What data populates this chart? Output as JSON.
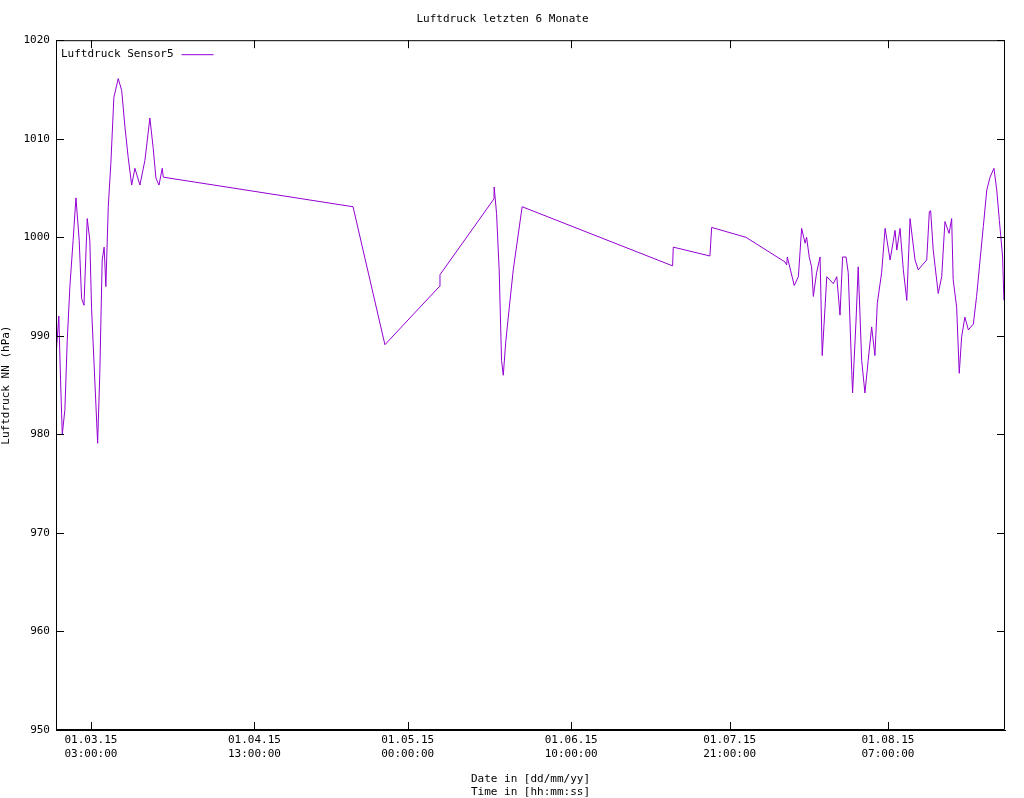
{
  "chart_data": {
    "type": "line",
    "title": "Luftdruck letzten 6 Monate",
    "xlabel": "Date in [dd/mm/yy]\nTime in [hh:mm:ss]",
    "ylabel": "Luftdruck NN (hPa)",
    "xlim": [
      "2015-02-22T10:00",
      "2015-08-23T19:00"
    ],
    "xticks": [
      {
        "value": "2015-03-01T03:00",
        "label": "01.03.15\n03:00:00"
      },
      {
        "value": "2015-04-01T13:00",
        "label": "01.04.15\n13:00:00"
      },
      {
        "value": "2015-05-01T00:00",
        "label": "01.05.15\n00:00:00"
      },
      {
        "value": "2015-06-01T10:00",
        "label": "01.06.15\n10:00:00"
      },
      {
        "value": "2015-07-01T21:00",
        "label": "01.07.15\n21:00:00"
      },
      {
        "value": "2015-08-01T07:00",
        "label": "01.08.15\n07:00:00"
      }
    ],
    "ylim": [
      950,
      1020
    ],
    "yticks": [
      950,
      960,
      970,
      980,
      990,
      1000,
      1010,
      1020
    ],
    "grid": false,
    "legend": "top left",
    "marker": "none",
    "line_style": "solid",
    "series": [
      {
        "name": "Luftdruck Sensor5",
        "color": "#9400d3",
        "x": [
          "2015-02-22T10:00",
          "2015-02-22T23:00",
          "2015-02-23T07:00",
          "2015-02-23T15:00",
          "2015-02-24T03:00",
          "2015-02-24T14:00",
          "2015-02-25T02:00",
          "2015-02-25T17:00",
          "2015-02-26T06:00",
          "2015-02-26T21:00",
          "2015-02-27T08:00",
          "2015-02-27T19:00",
          "2015-02-28T10:00",
          "2015-02-28T22:00",
          "2015-03-01T06:00",
          "2015-03-01T21:00",
          "2015-03-02T10:00",
          "2015-03-02T20:00",
          "2015-03-03T07:00",
          "2015-03-03T16:00",
          "2015-03-04T00:00",
          "2015-03-04T11:00",
          "2015-03-04T23:00",
          "2015-03-05T13:00",
          "2015-03-06T09:00",
          "2015-03-07T01:00",
          "2015-03-07T16:00",
          "2015-03-08T07:00",
          "2015-03-08T23:00",
          "2015-03-09T14:00",
          "2015-03-10T13:00",
          "2015-03-11T12:00",
          "2015-03-12T11:00",
          "2015-03-13T02:00",
          "2015-03-13T15:00",
          "2015-03-14T05:00",
          "2015-03-14T20:00",
          "2015-03-15T01:00",
          "2015-04-20T12:00",
          "2015-04-26T15:00",
          "2015-05-07T02:00",
          "2015-05-07T05:00",
          "2015-05-17T14:00",
          "2015-05-17T15:00",
          "2015-05-18T02:00",
          "2015-05-18T14:00",
          "2015-05-19T01:00",
          "2015-05-19T09:00",
          "2015-05-19T20:00",
          "2015-05-20T08:00",
          "2015-05-21T07:00",
          "2015-05-23T00:00",
          "2015-06-20T22:00",
          "2015-06-21T01:00",
          "2015-06-28T02:00",
          "2015-06-28T10:00",
          "2015-07-05T00:00",
          "2015-07-12T12:00",
          "2015-07-12T20:00",
          "2015-07-12T23:00",
          "2015-07-14T07:00",
          "2015-07-15T02:00",
          "2015-07-15T17:00",
          "2015-07-16T09:00",
          "2015-07-16T16:00",
          "2015-07-17T04:00",
          "2015-07-17T15:00",
          "2015-07-17T23:00",
          "2015-07-18T14:00",
          "2015-07-19T06:00",
          "2015-07-19T16:00",
          "2015-07-20T05:00",
          "2015-07-20T13:00",
          "2015-07-21T19:00",
          "2015-07-22T11:00",
          "2015-07-23T02:00",
          "2015-07-23T14:00",
          "2015-07-24T06:00",
          "2015-07-24T16:00",
          "2015-07-25T08:00",
          "2015-07-25T12:00",
          "2015-07-26T04:00",
          "2015-07-26T14:00",
          "2015-07-27T06:00",
          "2015-07-27T21:00",
          "2015-07-28T12:00",
          "2015-07-29T04:00",
          "2015-07-29T19:00",
          "2015-07-30T06:00",
          "2015-07-31T02:00",
          "2015-07-31T18:00",
          "2015-08-01T17:00",
          "2015-08-02T16:00",
          "2015-08-03T00:00",
          "2015-08-03T15:00",
          "2015-08-04T06:00",
          "2015-08-04T22:00",
          "2015-08-05T13:00",
          "2015-08-06T12:00",
          "2015-08-07T03:00",
          "2015-08-08T02:00",
          "2015-08-08T18:00",
          "2015-08-09T06:00",
          "2015-08-09T12:00",
          "2015-08-10T00:00",
          "2015-08-10T23:00",
          "2015-08-11T15:00",
          "2015-08-12T06:00",
          "2015-08-13T01:00",
          "2015-08-13T13:00",
          "2015-08-13T20:00",
          "2015-08-14T12:00",
          "2015-08-15T00:00",
          "2015-08-15T11:00",
          "2015-08-16T02:00",
          "2015-08-16T18:00",
          "2015-08-17T17:00",
          "2015-08-18T08:00",
          "2015-08-19T00:00",
          "2015-08-19T15:00",
          "2015-08-20T07:00",
          "2015-08-20T22:00",
          "2015-08-21T16:00",
          "2015-08-22T05:00",
          "2015-08-22T17:00",
          "2015-08-23T08:00",
          "2015-08-23T14:00"
        ],
        "values": [
          988,
          992,
          985.5,
          980,
          982.5,
          989.6,
          995,
          999.7,
          1004,
          999.7,
          993.8,
          993.1,
          1001.9,
          999.7,
          992.8,
          985.5,
          979.1,
          986.2,
          997.7,
          999,
          995,
          1003.1,
          1007.5,
          1014.2,
          1016.1,
          1014.9,
          1011.2,
          1008.1,
          1005.3,
          1007,
          1005.3,
          1007.8,
          1012.1,
          1009.1,
          1006,
          1005.3,
          1007,
          1006.1,
          1003.1,
          989.1,
          995,
          996.2,
          1003.9,
          1005.1,
          1002.4,
          996.7,
          987.5,
          986,
          989.3,
          991.9,
          996.7,
          1003.1,
          997.1,
          999,
          998.1,
          1001,
          1000,
          997.5,
          997.2,
          998,
          995.1,
          996,
          1000.9,
          999.4,
          1000,
          998,
          997,
          994,
          996.4,
          998,
          988,
          992.9,
          996,
          995.3,
          996,
          992.1,
          998,
          998,
          996.4,
          986.5,
          984.2,
          991.6,
          997,
          987.5,
          984.2,
          987.5,
          990.9,
          988,
          993.3,
          996.4,
          1000.9,
          997.7,
          1000.7,
          998.7,
          1000.9,
          996.7,
          993.6,
          1001.9,
          997.7,
          996.7,
          997.3,
          997.7,
          1002.6,
          1002.7,
          998.7,
          994.3,
          996,
          1001.6,
          1000.4,
          1001.9,
          995.7,
          992.9,
          986.2,
          989.9,
          991.9,
          990.6,
          991.2,
          994,
          997.7,
          1001.1,
          1004.8,
          1006.1,
          1007,
          1004.8,
          1001.7,
          998,
          993.6
        ]
      }
    ]
  }
}
